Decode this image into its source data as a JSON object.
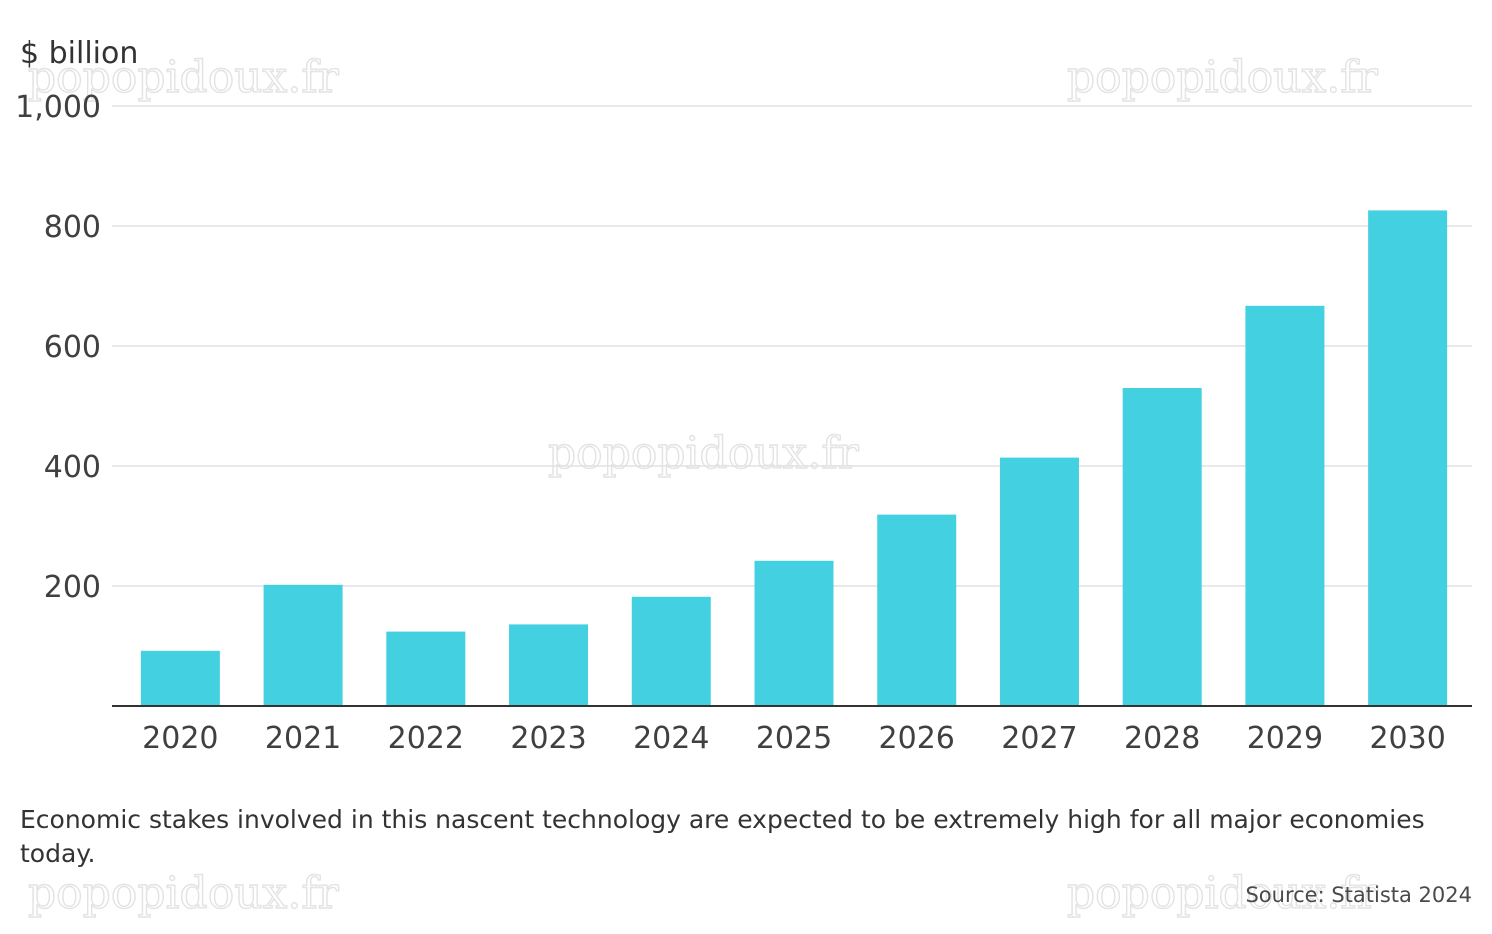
{
  "y_unit": "$ billion",
  "caption": "Economic stakes involved in this nascent technology are expected to be extremely high for all major economies today.",
  "source": "Source: Statista 2024",
  "watermark": "popopidoux.fr",
  "colors": {
    "bar": "#43d0e1",
    "grid": "#e2e2e2",
    "baseline": "#333333",
    "text": "#333333"
  },
  "chart_data": {
    "type": "bar",
    "categories": [
      "2020",
      "2021",
      "2022",
      "2023",
      "2024",
      "2025",
      "2026",
      "2027",
      "2028",
      "2029",
      "2030"
    ],
    "values": [
      92,
      202,
      124,
      136,
      182,
      242,
      319,
      414,
      530,
      667,
      826
    ],
    "ylabel": "$ billion",
    "ylim": [
      0,
      1000
    ],
    "yticks": [
      200,
      400,
      600,
      800,
      1000
    ],
    "ytick_labels": [
      "200",
      "400",
      "600",
      "800",
      "1,000"
    ],
    "grid": true,
    "legend": "none"
  }
}
